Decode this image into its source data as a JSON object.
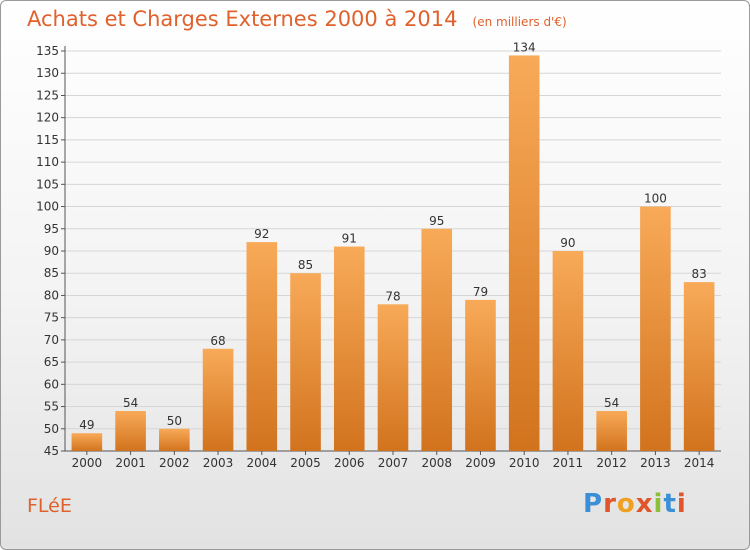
{
  "header": {
    "title": "Achats et Charges Externes 2000 à 2014",
    "subtitle": "(en milliers d'€)"
  },
  "footer": {
    "commune": "FLéE",
    "logo": "Proxiti"
  },
  "colors": {
    "accent": "#e0612c",
    "bar_light": "#f8aa58",
    "bar_dark": "#d2731e",
    "logo_letters": [
      "#3a8fd6",
      "#e0552a",
      "#f0a020",
      "#e0552a",
      "#8cbf3a",
      "#3a8fd6",
      "#e0552a"
    ]
  },
  "chart_data": {
    "type": "bar",
    "title": "Achats et Charges Externes 2000 à 2014",
    "subtitle": "(en milliers d'€)",
    "xlabel": "",
    "ylabel": "",
    "categories": [
      "2000",
      "2001",
      "2002",
      "2003",
      "2004",
      "2005",
      "2006",
      "2007",
      "2008",
      "2009",
      "2010",
      "2011",
      "2012",
      "2013",
      "2014"
    ],
    "values": [
      49,
      54,
      50,
      68,
      92,
      85,
      91,
      78,
      95,
      79,
      134,
      90,
      54,
      100,
      83
    ],
    "ylim": [
      45,
      135
    ],
    "yticks": [
      45,
      50,
      55,
      60,
      65,
      70,
      75,
      80,
      85,
      90,
      95,
      100,
      105,
      110,
      115,
      120,
      125,
      130,
      135
    ],
    "grid": true,
    "legend": "none"
  }
}
